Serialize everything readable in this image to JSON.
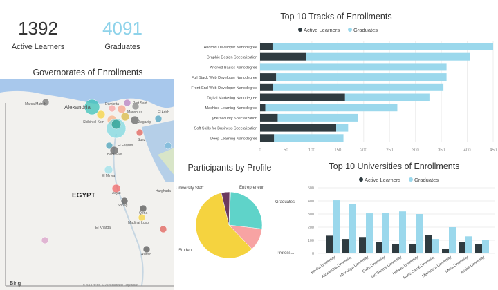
{
  "kpis": [
    {
      "value": "1392",
      "label": "Active Learners",
      "color": "#2f3b40"
    },
    {
      "value": "4091",
      "label": "Graduates",
      "color": "#8fd3ea"
    }
  ],
  "map": {
    "title": "Governorates of Enrollments",
    "country_label": "EGYPT",
    "attribution": "Bing",
    "copyright": "© 2019 HERE, © 2019 Microsoft Corporation",
    "places": [
      "Marsa Matruh",
      "Alexandria",
      "Damietta",
      "Port Said",
      "Mansoura",
      "Zagazig",
      "Shibin el Kom",
      "El Arish",
      "Suez",
      "El Faiyum",
      "Beni Suef",
      "El Minya",
      "Asyut",
      "Hurghada",
      "Sohag",
      "Qena",
      "Madinat Luxor",
      "El Kharga",
      "Aswan"
    ]
  },
  "colors": {
    "active": "#2f3b40",
    "graduates": "#9bd8ec"
  },
  "chart_data": [
    {
      "type": "bar",
      "orientation": "horizontal",
      "stacked": true,
      "title": "Top 10 Tracks of Enrollments",
      "legend": [
        "Active Learners",
        "Graduates"
      ],
      "legend_position": "top",
      "categories": [
        "Android Developer Nanodegree",
        "Graphic Design Specialization",
        "Android Basics Nanodegree",
        "Full Stack Web Developer Nanodegree",
        "Front-End Web Developer Nanodegree",
        "Digital Marketing Nanodegree",
        "Machine Learning Nanodegree",
        "Cybersecurity Specialization",
        "Soft Skills for Business Specialization",
        "Deep Learning Nanodegree"
      ],
      "series": [
        {
          "name": "Active Learners",
          "values": [
            24,
            89,
            0,
            31,
            25,
            164,
            10,
            34,
            147,
            27
          ]
        },
        {
          "name": "Graduates",
          "values": [
            426,
            316,
            360,
            329,
            329,
            163,
            255,
            155,
            23,
            134
          ]
        }
      ],
      "xlim": [
        0,
        450
      ],
      "xticks": [
        "0",
        "50",
        "100",
        "150",
        "200",
        "250",
        "300",
        "350",
        "400",
        "450"
      ]
    },
    {
      "type": "pie",
      "title": "Participants by Profile",
      "labels": [
        "Entrepreneur",
        "Graduates",
        "Profess...",
        "Student",
        "University Staff"
      ],
      "values": [
        0.5,
        26,
        11,
        58.5,
        4
      ],
      "colors": [
        "#9bd8ec",
        "#5fd3c9",
        "#f7a3a3",
        "#f5d33f",
        "#6b3a5e"
      ]
    },
    {
      "type": "bar",
      "title": "Top 10 Universities of Enrollments",
      "legend": [
        "Active Learners",
        "Graduates"
      ],
      "legend_position": "top",
      "categories": [
        "Benha University",
        "Alexandria University",
        "Minoufiya University",
        "Cairo University",
        "Ain Shams University",
        "Helwan University",
        "Suez Canal University",
        "Mansoura University",
        "Minia University",
        "Assiut University"
      ],
      "series": [
        {
          "name": "Active Learners",
          "values": [
            135,
            110,
            125,
            88,
            70,
            72,
            140,
            35,
            88,
            72
          ]
        },
        {
          "name": "Graduates",
          "values": [
            405,
            378,
            305,
            310,
            320,
            300,
            110,
            200,
            130,
            100
          ]
        }
      ],
      "ylim": [
        0,
        500
      ],
      "yticks": [
        "0",
        "100",
        "200",
        "300",
        "400",
        "500"
      ]
    }
  ]
}
